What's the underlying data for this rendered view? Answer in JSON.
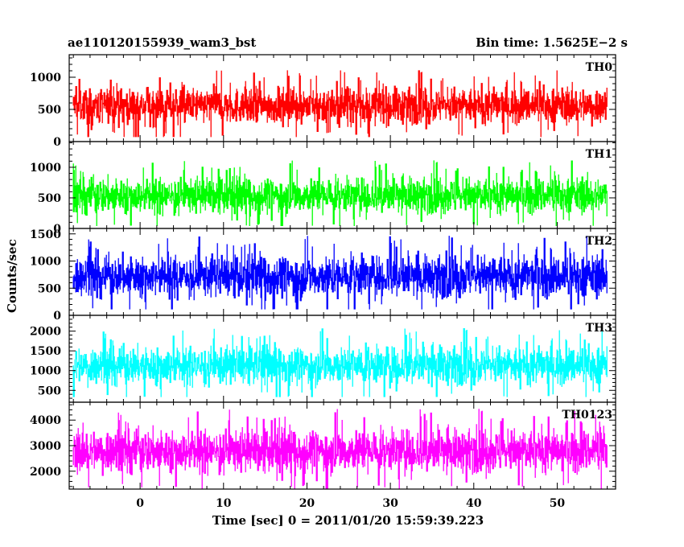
{
  "header": {
    "title_left": "ae110120155939_wam3_bst",
    "title_right": "Bin time: 1.5625E−2 s"
  },
  "chart_data": {
    "type": "line",
    "title": "ae110120155939_wam3_bst",
    "subtitle": "Bin time: 1.5625E−2 s",
    "xlabel": "Time [sec] 0 = 2011/01/20 15:59:39.223",
    "ylabel": "Counts/sec",
    "xlim": [
      -8.5,
      57
    ],
    "x_ticks": [
      0,
      10,
      20,
      30,
      40,
      50
    ],
    "x_start": -8,
    "x_end": 56,
    "grid": false,
    "panels": [
      {
        "name": "TH0",
        "color": "#ff0000",
        "ylim": [
          0,
          1350
        ],
        "yticks": [
          0,
          500,
          1000
        ],
        "mean": 560,
        "spread": 110,
        "min": 70,
        "max": 1350
      },
      {
        "name": "TH1",
        "color": "#00ff00",
        "ylim": [
          0,
          1420
        ],
        "yticks": [
          0,
          500,
          1000
        ],
        "mean": 540,
        "spread": 115,
        "min": 40,
        "max": 1420
      },
      {
        "name": "TH2",
        "color": "#0000ff",
        "ylim": [
          0,
          1600
        ],
        "yticks": [
          0,
          500,
          1000,
          1500
        ],
        "mean": 720,
        "spread": 150,
        "min": 110,
        "max": 1600
      },
      {
        "name": "TH3",
        "color": "#00ffff",
        "ylim": [
          200,
          2400
        ],
        "yticks": [
          500,
          1000,
          1500,
          2000
        ],
        "mean": 1130,
        "spread": 190,
        "min": 330,
        "max": 2400
      },
      {
        "name": "TH0123",
        "color": "#ff00ff",
        "ylim": [
          1300,
          4700
        ],
        "yticks": [
          2000,
          3000,
          4000
        ],
        "mean": 2800,
        "spread": 330,
        "min": 1300,
        "max": 4700
      }
    ]
  }
}
